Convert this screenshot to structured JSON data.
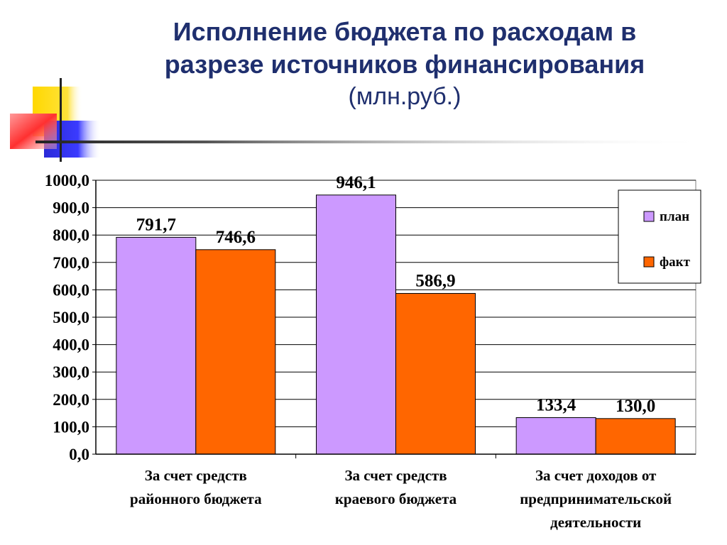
{
  "title": {
    "line1": "Исполнение бюджета по расходам в",
    "line2": "разрезе источников финансирования",
    "unit": "(млн.руб.)"
  },
  "colors": {
    "plan": "#cc99ff",
    "fact": "#ff6600",
    "title": "#1f2f6e"
  },
  "chart_data": {
    "type": "bar",
    "categories": [
      [
        "За счет средств",
        "районного бюджета"
      ],
      [
        "За счет средств",
        "краевого бюджета"
      ],
      [
        "За счет доходов от",
        "предпринимательской",
        "деятельности"
      ]
    ],
    "series": [
      {
        "name": "план",
        "values": [
          791.7,
          946.1,
          133.4
        ],
        "labels": [
          "791,7",
          "946,1",
          "133,4"
        ],
        "color": "#cc99ff"
      },
      {
        "name": "факт",
        "values": [
          746.6,
          586.9,
          130.0
        ],
        "labels": [
          "746,6",
          "586,9",
          "130,0"
        ],
        "color": "#ff6600"
      }
    ],
    "ylim": [
      0,
      1000
    ],
    "ticks": [
      {
        "value": 0,
        "label": "0,0"
      },
      {
        "value": 100,
        "label": "100,0"
      },
      {
        "value": 200,
        "label": "200,0"
      },
      {
        "value": 300,
        "label": "300,0"
      },
      {
        "value": 400,
        "label": "400,0"
      },
      {
        "value": 500,
        "label": "500,0"
      },
      {
        "value": 600,
        "label": "600,0"
      },
      {
        "value": 700,
        "label": "700,0"
      },
      {
        "value": 800,
        "label": "800,0"
      },
      {
        "value": 900,
        "label": "900,0"
      },
      {
        "value": 1000,
        "label": "1000,0"
      }
    ],
    "grid": true,
    "legend": "top-right"
  }
}
